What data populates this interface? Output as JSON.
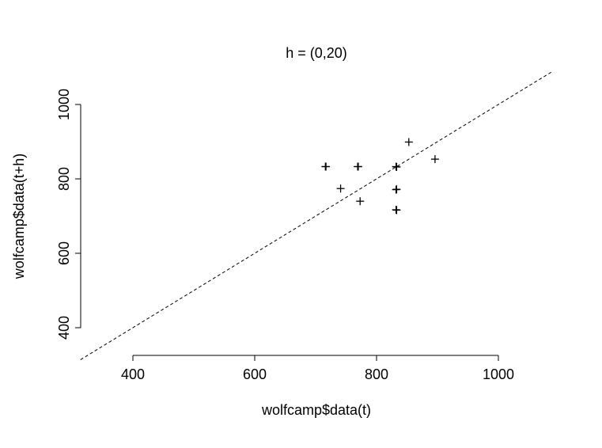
{
  "chart_data": {
    "type": "scatter",
    "title": "h = (0,20)",
    "xlabel": "wolfcamp$data(t)",
    "ylabel": "wolfcamp$data(t+h)",
    "xlim": [
      400,
      1000
    ],
    "ylim": [
      400,
      1000
    ],
    "x_ticks": [
      400,
      600,
      800,
      1000
    ],
    "y_ticks": [
      400,
      600,
      800,
      1000
    ],
    "grid": false,
    "legend": "none",
    "marker": "plus",
    "reference_line": {
      "style": "dashed",
      "slope": 1,
      "intercept": 0
    },
    "points": [
      {
        "x": 716,
        "y": 833
      },
      {
        "x": 717,
        "y": 833
      },
      {
        "x": 741,
        "y": 774
      },
      {
        "x": 769,
        "y": 833
      },
      {
        "x": 770,
        "y": 833
      },
      {
        "x": 773,
        "y": 740
      },
      {
        "x": 832,
        "y": 833
      },
      {
        "x": 833,
        "y": 832
      },
      {
        "x": 832,
        "y": 771
      },
      {
        "x": 833,
        "y": 772
      },
      {
        "x": 832,
        "y": 717
      },
      {
        "x": 833,
        "y": 716
      },
      {
        "x": 853,
        "y": 899
      },
      {
        "x": 896,
        "y": 853
      }
    ]
  }
}
